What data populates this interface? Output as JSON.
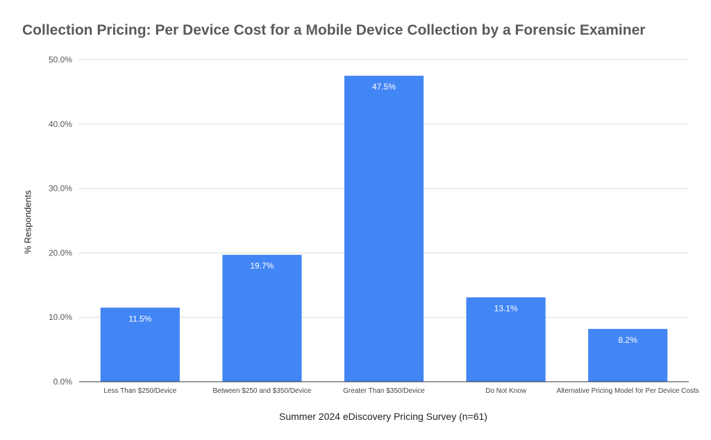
{
  "chart_data": {
    "type": "bar",
    "title": "Collection Pricing: Per Device Cost for a Mobile Device Collection by a Forensic Examiner",
    "xlabel": "Summer 2024 eDiscovery Pricing Survey (n=61)",
    "ylabel": "% Respondents",
    "categories": [
      "Less Than $250/Device",
      "Between $250 and $350/Device",
      "Greater Than $350/Device",
      "Do Not Know",
      "Alternative Pricing Model for Per Device Costs"
    ],
    "values": [
      11.5,
      19.7,
      47.5,
      13.1,
      8.2
    ],
    "value_labels": [
      "11.5%",
      "19.7%",
      "47.5%",
      "13.1%",
      "8.2%"
    ],
    "ylim": [
      0,
      50
    ],
    "yticks": [
      0,
      10,
      20,
      30,
      40,
      50
    ],
    "ytick_labels": [
      "0.0%",
      "10.0%",
      "20.0%",
      "30.0%",
      "40.0%",
      "50.0%"
    ],
    "grid": true,
    "bar_color": "#4285f4",
    "label_color": "#ffffff",
    "grid_color": "#dddddd"
  }
}
